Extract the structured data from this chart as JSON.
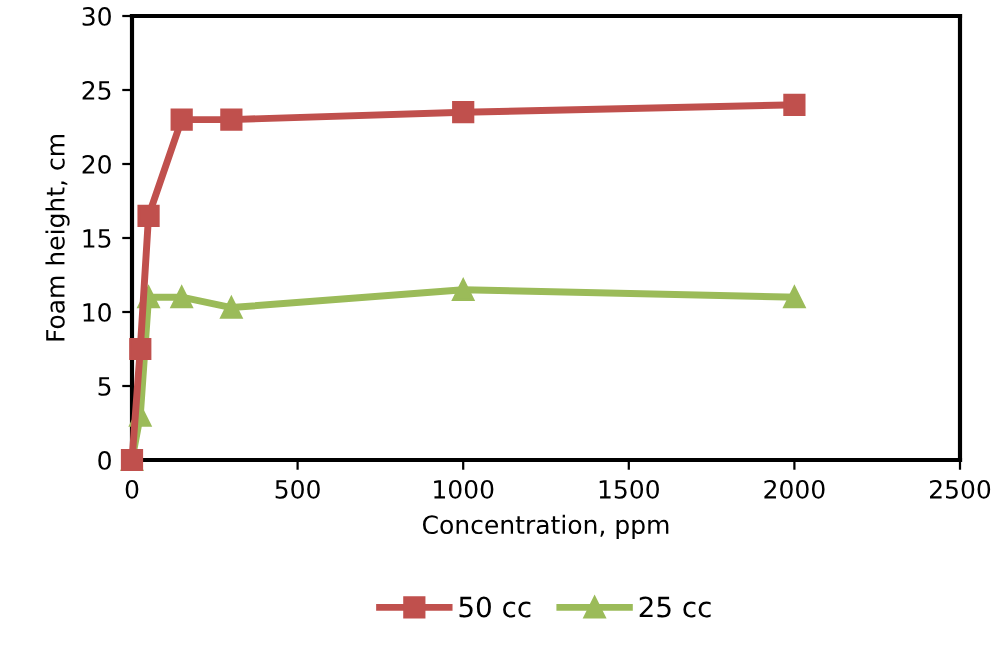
{
  "chart_data": {
    "type": "line",
    "xlabel": "Concentration, ppm",
    "ylabel": "Foam height, cm",
    "xlim": [
      0,
      2500
    ],
    "xticks": [
      0,
      500,
      1000,
      1500,
      2000,
      2500
    ],
    "ylim": [
      0,
      30
    ],
    "yticks": [
      0,
      5,
      10,
      15,
      20,
      25,
      30
    ],
    "grid": false,
    "legend": "bottom",
    "line_style": "solid",
    "series": [
      {
        "name": "50 cc",
        "color": "#c0504d",
        "marker": "square",
        "x": [
          0,
          25,
          50,
          150,
          300,
          1000,
          2000
        ],
        "values": [
          0,
          7.5,
          16.5,
          23,
          23,
          23.5,
          24
        ]
      },
      {
        "name": "25 cc",
        "color": "#9bbb59",
        "marker": "triangle",
        "x": [
          0,
          25,
          50,
          150,
          300,
          1000,
          2000
        ],
        "values": [
          0,
          3,
          11,
          11,
          10.3,
          11.5,
          11
        ]
      }
    ]
  }
}
